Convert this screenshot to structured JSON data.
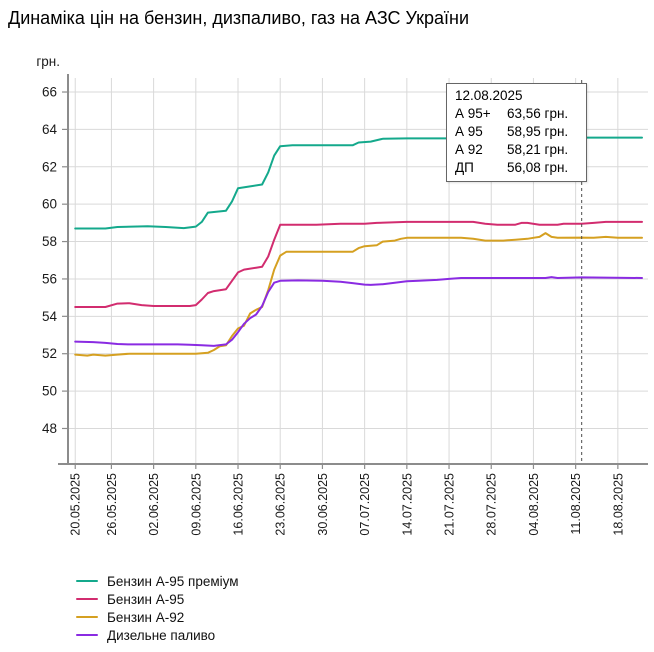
{
  "page": {
    "title": "Динаміка цін на бензин, дизпаливо, газ на АЗС України"
  },
  "colors": {
    "background": "#ffffff",
    "grid": "#d9d9d9",
    "axis": "#8c8c8c",
    "text": "#1a1a1a",
    "crosshair": "#4d4d4d"
  },
  "chart_data": {
    "type": "line",
    "title": "Динаміка цін на бензин, дизпаливо, газ на АЗС України",
    "ylabel": "грн.",
    "y_ticks": [
      48,
      50,
      52,
      54,
      56,
      58,
      60,
      62,
      64,
      66
    ],
    "y_range": [
      46.1,
      66.75
    ],
    "x_note": "points use day offsets counted from 20.05.2025",
    "x_tick_labels": [
      "20.05.2025",
      "26.05.2025",
      "02.06.2025",
      "09.06.2025",
      "16.06.2025",
      "23.06.2025",
      "30.06.2025",
      "07.07.2025",
      "14.07.2025",
      "21.07.2025",
      "28.07.2025",
      "04.08.2025",
      "11.08.2025",
      "18.08.2025"
    ],
    "x_tick_days": [
      0,
      6,
      13,
      20,
      27,
      34,
      41,
      48,
      55,
      62,
      69,
      76,
      83,
      90
    ],
    "x_range_days": [
      -1.2,
      95
    ],
    "grid": true,
    "legend_position": "bottom-left",
    "crosshair": {
      "day": 84,
      "date": "12.08.2025",
      "style": "dashed"
    },
    "tooltip": {
      "date": "12.08.2025",
      "rows": [
        {
          "label": "А 95+",
          "value": "63,56 грн."
        },
        {
          "label": "А 95",
          "value": "58,95 грн."
        },
        {
          "label": "А 92",
          "value": "58,21 грн."
        },
        {
          "label": "ДП",
          "value": "56,08 грн."
        }
      ]
    },
    "series": [
      {
        "name": "Бензин А-95 преміум",
        "key": "a95-premium",
        "color": "#14a98c",
        "points": [
          [
            0,
            58.7
          ],
          [
            5,
            58.7
          ],
          [
            7,
            58.78
          ],
          [
            12,
            58.82
          ],
          [
            15,
            58.78
          ],
          [
            18,
            58.72
          ],
          [
            20,
            58.8
          ],
          [
            21,
            59.05
          ],
          [
            22,
            59.55
          ],
          [
            25,
            59.65
          ],
          [
            26,
            60.15
          ],
          [
            27,
            60.85
          ],
          [
            29,
            60.95
          ],
          [
            31,
            61.05
          ],
          [
            32,
            61.7
          ],
          [
            33,
            62.6
          ],
          [
            34,
            63.1
          ],
          [
            36,
            63.15
          ],
          [
            46,
            63.15
          ],
          [
            47,
            63.3
          ],
          [
            49,
            63.35
          ],
          [
            51,
            63.5
          ],
          [
            55,
            63.52
          ],
          [
            70,
            63.52
          ],
          [
            84,
            63.56
          ],
          [
            94,
            63.56
          ]
        ]
      },
      {
        "name": "Бензин А-95",
        "key": "a95",
        "color": "#d22c6f",
        "points": [
          [
            0,
            54.5
          ],
          [
            5,
            54.5
          ],
          [
            7,
            54.68
          ],
          [
            9,
            54.7
          ],
          [
            11,
            54.6
          ],
          [
            13,
            54.55
          ],
          [
            19,
            54.55
          ],
          [
            20,
            54.6
          ],
          [
            21,
            54.9
          ],
          [
            22,
            55.25
          ],
          [
            23,
            55.35
          ],
          [
            25,
            55.45
          ],
          [
            26,
            55.9
          ],
          [
            27,
            56.35
          ],
          [
            28,
            56.5
          ],
          [
            30,
            56.6
          ],
          [
            31,
            56.65
          ],
          [
            32,
            57.2
          ],
          [
            33,
            58.1
          ],
          [
            34,
            58.9
          ],
          [
            40,
            58.9
          ],
          [
            44,
            58.95
          ],
          [
            48,
            58.95
          ],
          [
            50,
            59.0
          ],
          [
            55,
            59.05
          ],
          [
            66,
            59.05
          ],
          [
            68,
            58.95
          ],
          [
            70,
            58.9
          ],
          [
            73,
            58.9
          ],
          [
            74,
            59.0
          ],
          [
            75,
            59.0
          ],
          [
            77,
            58.9
          ],
          [
            80,
            58.9
          ],
          [
            81,
            58.95
          ],
          [
            84,
            58.95
          ],
          [
            86,
            59.0
          ],
          [
            88,
            59.05
          ],
          [
            94,
            59.05
          ]
        ]
      },
      {
        "name": "Бензин А-92",
        "key": "a92",
        "color": "#d5a021",
        "points": [
          [
            0,
            51.95
          ],
          [
            2,
            51.9
          ],
          [
            3,
            51.95
          ],
          [
            5,
            51.9
          ],
          [
            7,
            51.95
          ],
          [
            9,
            52.0
          ],
          [
            20,
            52.0
          ],
          [
            22,
            52.05
          ],
          [
            23,
            52.2
          ],
          [
            24,
            52.4
          ],
          [
            25,
            52.45
          ],
          [
            26,
            52.95
          ],
          [
            27,
            53.35
          ],
          [
            28,
            53.5
          ],
          [
            29,
            54.15
          ],
          [
            30,
            54.35
          ],
          [
            31,
            54.5
          ],
          [
            32,
            55.4
          ],
          [
            33,
            56.5
          ],
          [
            34,
            57.25
          ],
          [
            35,
            57.45
          ],
          [
            46,
            57.45
          ],
          [
            47,
            57.65
          ],
          [
            48,
            57.75
          ],
          [
            50,
            57.8
          ],
          [
            51,
            58.0
          ],
          [
            53,
            58.05
          ],
          [
            54,
            58.15
          ],
          [
            55,
            58.2
          ],
          [
            64,
            58.2
          ],
          [
            66,
            58.15
          ],
          [
            68,
            58.05
          ],
          [
            71,
            58.05
          ],
          [
            73,
            58.1
          ],
          [
            75,
            58.15
          ],
          [
            76,
            58.2
          ],
          [
            77,
            58.25
          ],
          [
            78,
            58.45
          ],
          [
            79,
            58.25
          ],
          [
            80,
            58.2
          ],
          [
            84,
            58.21
          ],
          [
            86,
            58.2
          ],
          [
            88,
            58.25
          ],
          [
            90,
            58.2
          ],
          [
            94,
            58.2
          ]
        ]
      },
      {
        "name": "Дизельне паливо",
        "key": "diesel",
        "color": "#8a2be2",
        "points": [
          [
            0,
            52.65
          ],
          [
            3,
            52.62
          ],
          [
            5,
            52.58
          ],
          [
            7,
            52.52
          ],
          [
            9,
            52.5
          ],
          [
            17,
            52.5
          ],
          [
            19,
            52.48
          ],
          [
            21,
            52.45
          ],
          [
            23,
            52.42
          ],
          [
            25,
            52.5
          ],
          [
            26,
            52.75
          ],
          [
            27,
            53.15
          ],
          [
            28,
            53.6
          ],
          [
            29,
            53.9
          ],
          [
            30,
            54.1
          ],
          [
            31,
            54.55
          ],
          [
            32,
            55.3
          ],
          [
            33,
            55.8
          ],
          [
            34,
            55.9
          ],
          [
            37,
            55.92
          ],
          [
            41,
            55.9
          ],
          [
            44,
            55.85
          ],
          [
            46,
            55.78
          ],
          [
            48,
            55.7
          ],
          [
            49,
            55.68
          ],
          [
            51,
            55.72
          ],
          [
            53,
            55.8
          ],
          [
            55,
            55.88
          ],
          [
            57,
            55.9
          ],
          [
            60,
            55.95
          ],
          [
            62,
            56.0
          ],
          [
            64,
            56.05
          ],
          [
            78,
            56.05
          ],
          [
            79,
            56.1
          ],
          [
            80,
            56.05
          ],
          [
            84,
            56.08
          ],
          [
            94,
            56.05
          ]
        ]
      }
    ]
  }
}
